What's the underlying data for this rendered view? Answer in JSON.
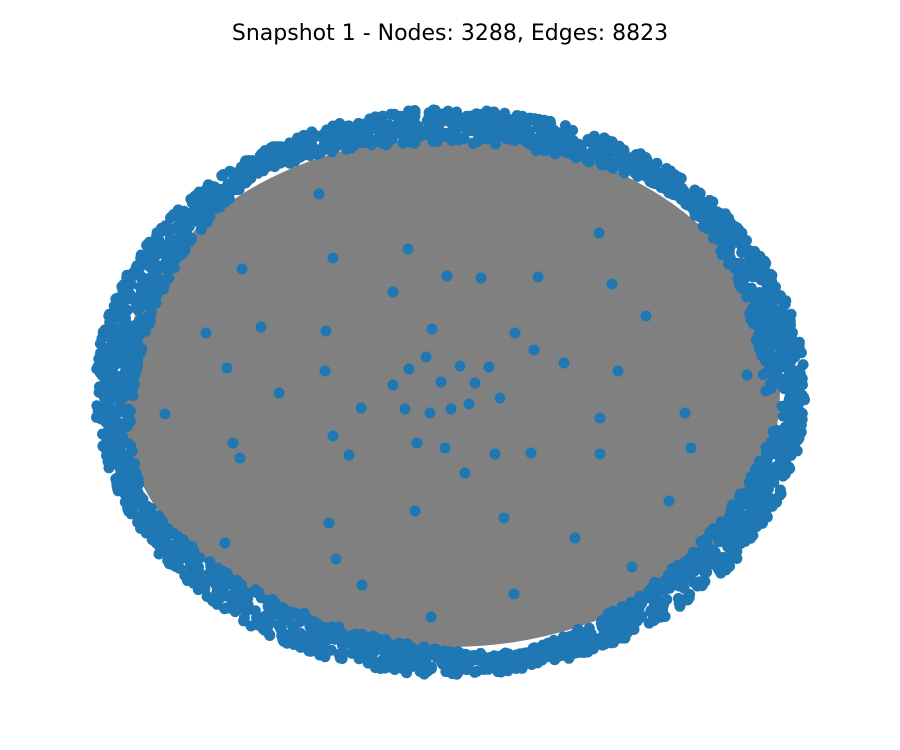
{
  "figure": {
    "title": "Snapshot 1 - Nodes: 3288, Edges: 8823"
  },
  "graph": {
    "layout": "spring",
    "node_count": 3288,
    "edge_count": 8823,
    "colors": {
      "background": "#ffffff",
      "edge": "#808080",
      "node": "#1f77b4"
    }
  }
}
